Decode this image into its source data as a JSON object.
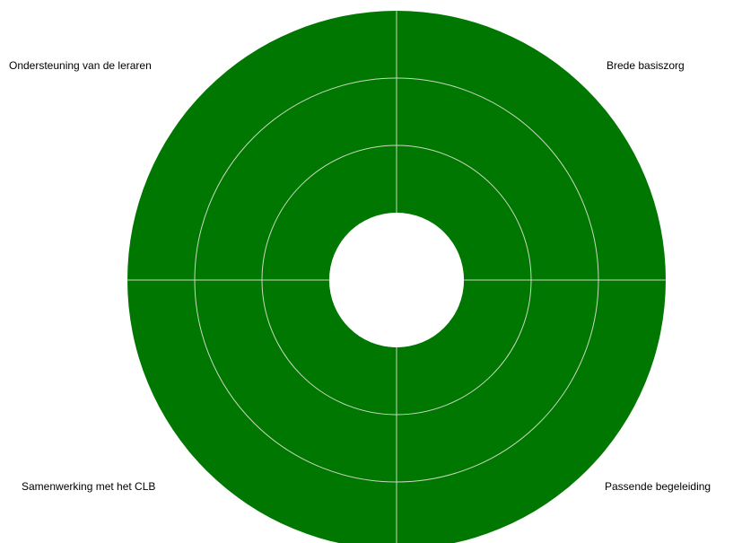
{
  "chart_data": {
    "type": "radial-quadrant",
    "rings": 3,
    "quadrants": [
      {
        "label": "Ondersteuning van de leraren",
        "position": "top-left"
      },
      {
        "label": "Brede basiszorg",
        "position": "top-right"
      },
      {
        "label": "Samenwerking met het CLB",
        "position": "bottom-left"
      },
      {
        "label": "Passende begeleiding",
        "position": "bottom-right"
      }
    ],
    "colors": {
      "fill": "#007700",
      "gridline": "#c8d8c0",
      "center": "#ffffff"
    }
  }
}
